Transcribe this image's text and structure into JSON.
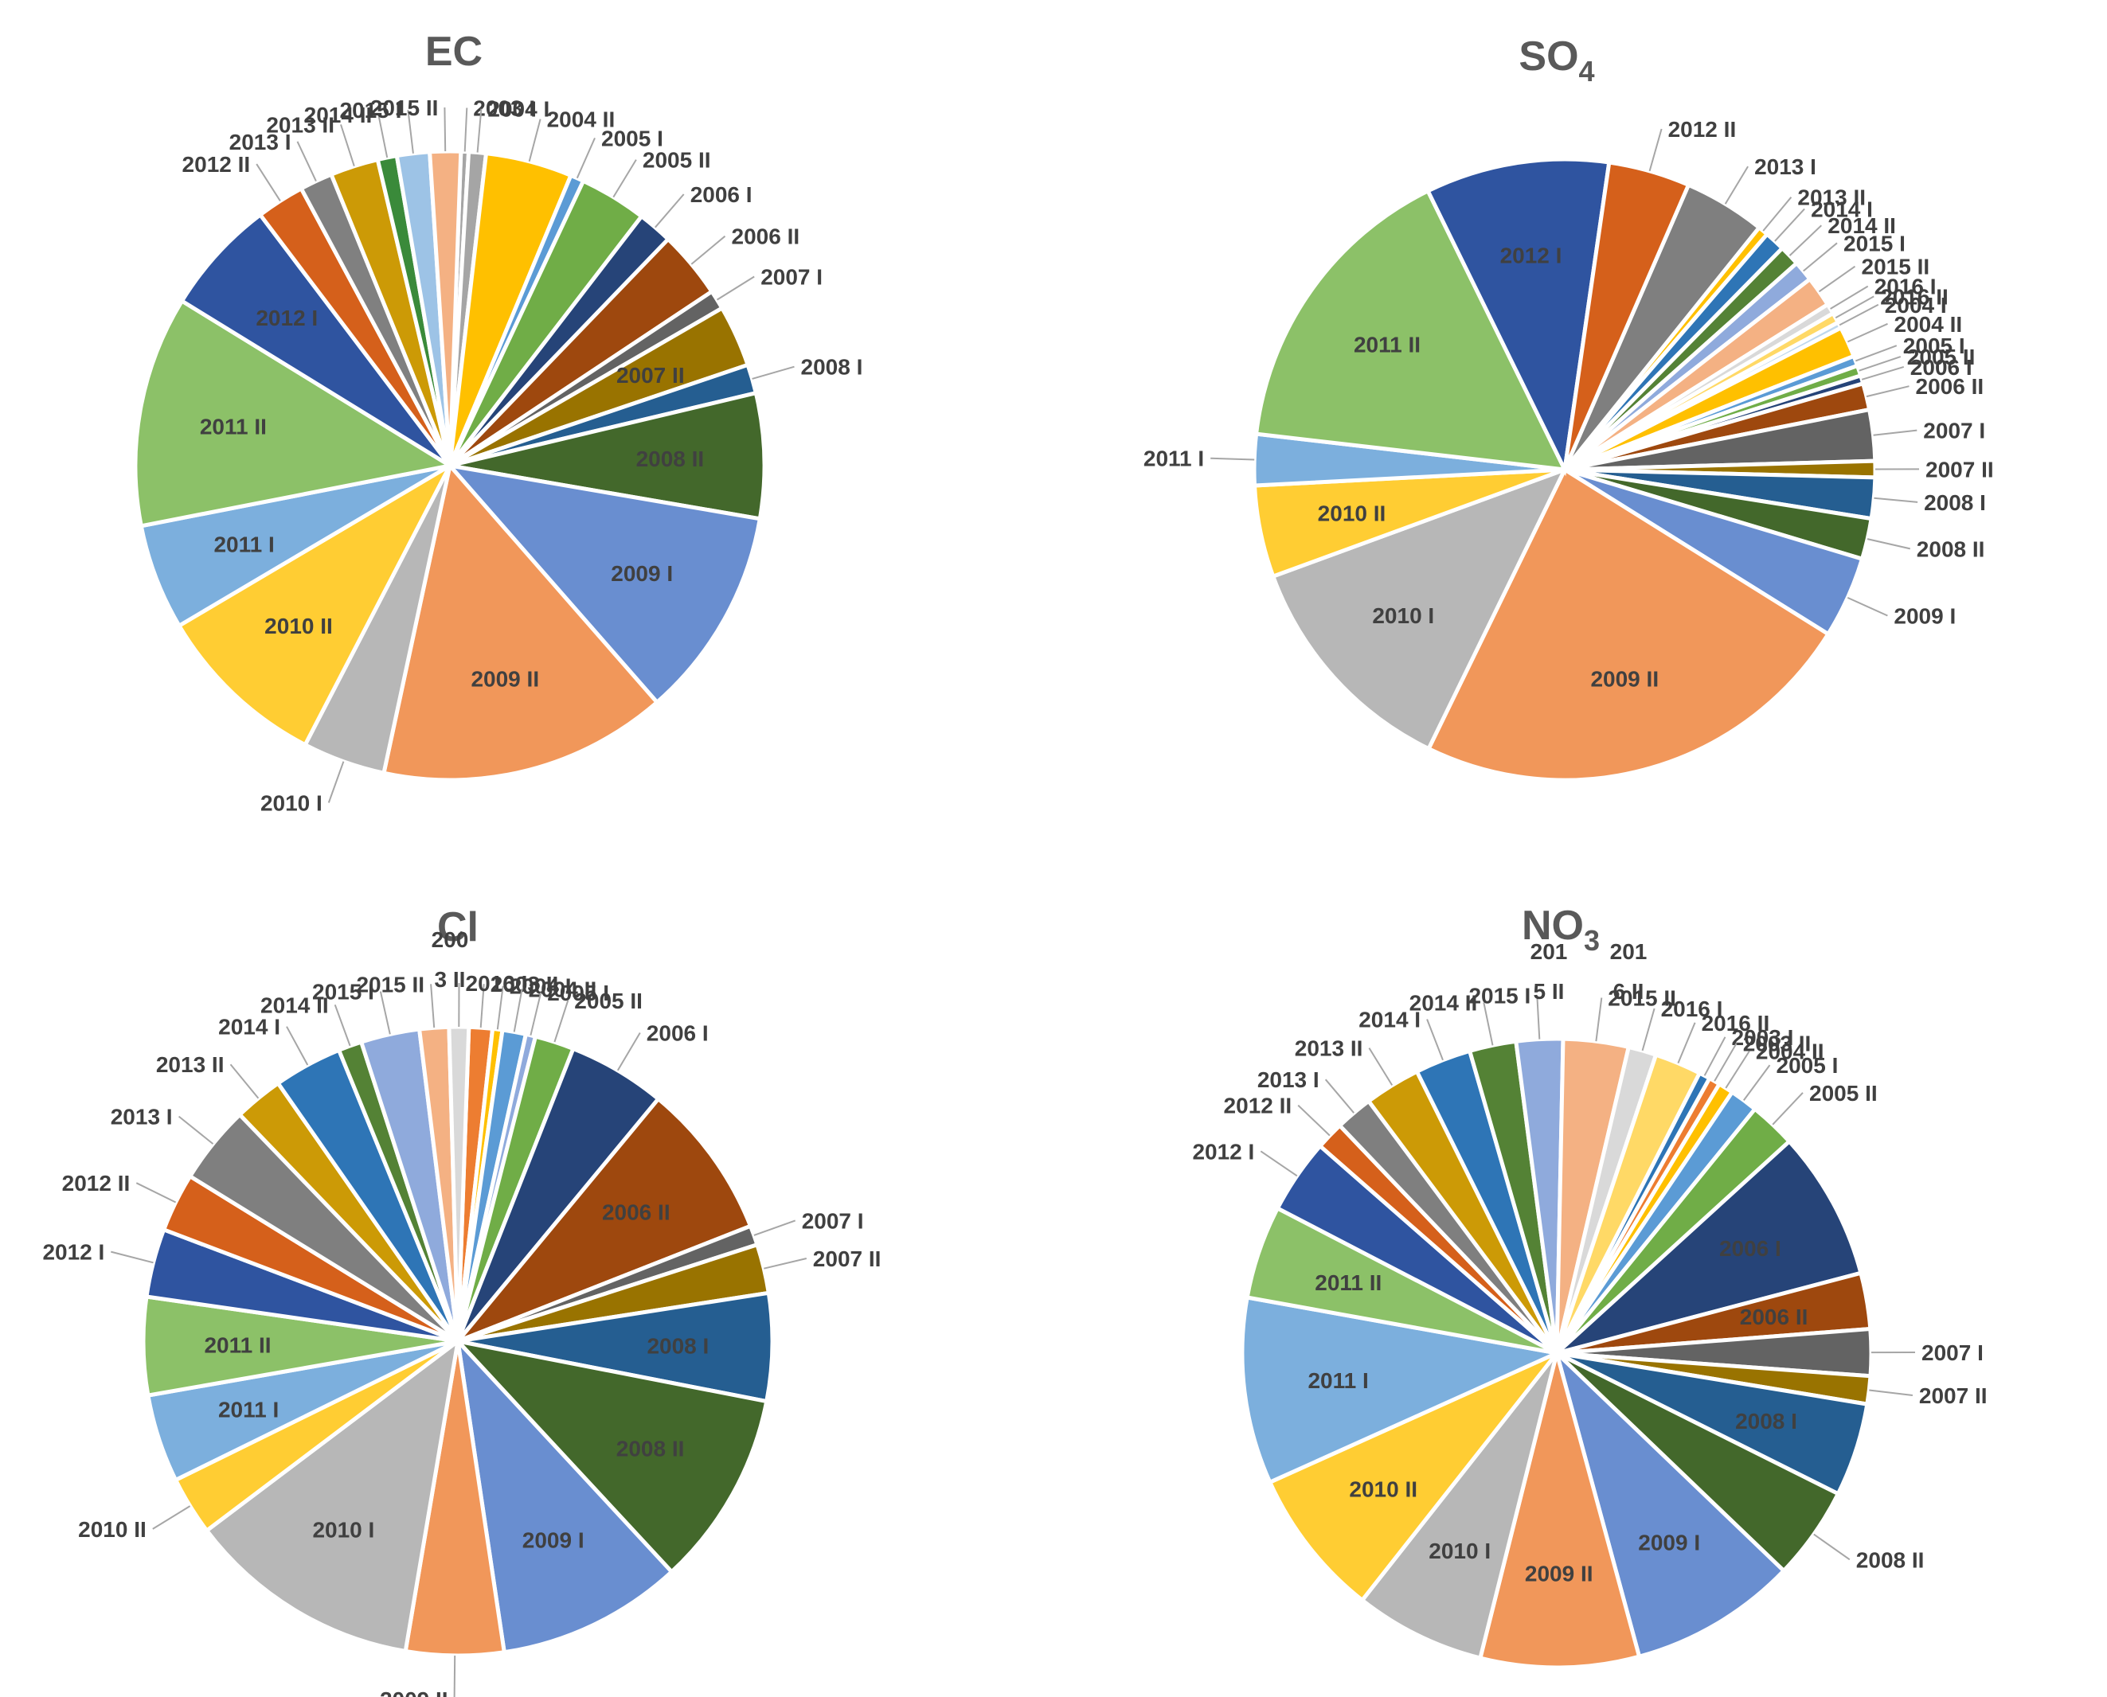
{
  "figure": {
    "description_label": "Four pie charts of seasonal contributions"
  },
  "chart_data": [
    {
      "type": "pie",
      "title": "EC",
      "title_sub": "",
      "slices": [
        {
          "label": "2003 I",
          "value": 0.4,
          "color": "#a5a5a5",
          "inside": false
        },
        {
          "label": "2004 I",
          "value": 0.9,
          "color": "#a5a5a5",
          "inside": false
        },
        {
          "label": "2004 II",
          "value": 4.5,
          "color": "#ffc000",
          "inside": false
        },
        {
          "label": "2005 I",
          "value": 0.7,
          "color": "#5b9bd5",
          "inside": false
        },
        {
          "label": "2005 II",
          "value": 3.5,
          "color": "#70ad47",
          "inside": false
        },
        {
          "label": "2006 I",
          "value": 1.8,
          "color": "#264478",
          "inside": false
        },
        {
          "label": "2006 II",
          "value": 3.5,
          "color": "#9e480e",
          "inside": false
        },
        {
          "label": "2007 I",
          "value": 1.0,
          "color": "#636363",
          "inside": false
        },
        {
          "label": "2007 II",
          "value": 3.2,
          "color": "#997300",
          "inside": true
        },
        {
          "label": "2008 I",
          "value": 1.5,
          "color": "#255e91",
          "inside": false
        },
        {
          "label": "2008 II",
          "value": 6.5,
          "color": "#43682b",
          "inside": true
        },
        {
          "label": "2009 I",
          "value": 11.0,
          "color": "#698ed0",
          "inside": true
        },
        {
          "label": "2009 II",
          "value": 15.0,
          "color": "#f1975a",
          "inside": true
        },
        {
          "label": "2010 I",
          "value": 4.3,
          "color": "#b7b7b7",
          "inside": false
        },
        {
          "label": "2010 II",
          "value": 9.0,
          "color": "#ffcd33",
          "inside": true
        },
        {
          "label": "2011 I",
          "value": 5.5,
          "color": "#7cafdd",
          "inside": true
        },
        {
          "label": "2011 II",
          "value": 12.0,
          "color": "#8cc168",
          "inside": true
        },
        {
          "label": "2012 I",
          "value": 6.0,
          "color": "#2f54a0",
          "inside": true
        },
        {
          "label": "2012 II",
          "value": 2.5,
          "color": "#d5601b",
          "inside": false
        },
        {
          "label": "2013 I",
          "value": 1.7,
          "color": "#808080",
          "inside": false
        },
        {
          "label": "2013 II",
          "value": 2.5,
          "color": "#cc9a06",
          "inside": false
        },
        {
          "label": "2014 II",
          "value": 1.0,
          "color": "#3a8a3a",
          "inside": false
        },
        {
          "label": "2015 I",
          "value": 1.7,
          "color": "#9dc3e6",
          "inside": false
        },
        {
          "label": "2015 II",
          "value": 1.6,
          "color": "#f4b183",
          "inside": false
        },
        {
          "label": "2003 I",
          "value": 0.0,
          "color": "#2e75b6",
          "inside": false,
          "hidden": true
        }
      ]
    },
    {
      "type": "pie",
      "title": "SO",
      "title_sub": "4",
      "slices": [
        {
          "label": "2013 I",
          "value": 4.0,
          "color": "#7f7f7f",
          "inside": false
        },
        {
          "label": "2013 II",
          "value": 0.5,
          "color": "#ffc000",
          "inside": false
        },
        {
          "label": "2014 I",
          "value": 1.0,
          "color": "#2e75b6",
          "inside": false
        },
        {
          "label": "2014 II",
          "value": 1.0,
          "color": "#548235",
          "inside": false
        },
        {
          "label": "2015 I",
          "value": 1.0,
          "color": "#8faadc",
          "inside": false
        },
        {
          "label": "2015 II",
          "value": 1.5,
          "color": "#f4b183",
          "inside": false
        },
        {
          "label": "2016 I",
          "value": 0.5,
          "color": "#d9d9d9",
          "inside": false
        },
        {
          "label": "2016 II",
          "value": 0.5,
          "color": "#ffd966",
          "inside": false
        },
        {
          "label": "2004 I",
          "value": 0.3,
          "color": "#bdd7ee",
          "inside": false
        },
        {
          "label": "2004 II",
          "value": 1.5,
          "color": "#ffc000",
          "inside": false
        },
        {
          "label": "2005 I",
          "value": 0.5,
          "color": "#5b9bd5",
          "inside": false
        },
        {
          "label": "2005 II",
          "value": 0.5,
          "color": "#70ad47",
          "inside": false
        },
        {
          "label": "2006 I",
          "value": 0.4,
          "color": "#264478",
          "inside": false
        },
        {
          "label": "2006 II",
          "value": 1.3,
          "color": "#9e480e",
          "inside": false
        },
        {
          "label": "2007 I",
          "value": 2.5,
          "color": "#636363",
          "inside": false
        },
        {
          "label": "2007 II",
          "value": 0.8,
          "color": "#997300",
          "inside": false
        },
        {
          "label": "2008 I",
          "value": 2.0,
          "color": "#255e91",
          "inside": false
        },
        {
          "label": "2008 II",
          "value": 2.0,
          "color": "#43682b",
          "inside": false
        },
        {
          "label": "2009 I",
          "value": 4.0,
          "color": "#698ed0",
          "inside": false
        },
        {
          "label": "2009 II",
          "value": 22.0,
          "color": "#f1975a",
          "inside": true
        },
        {
          "label": "2010 I",
          "value": 11.5,
          "color": "#b7b7b7",
          "inside": true
        },
        {
          "label": "2010 II",
          "value": 4.5,
          "color": "#ffcd33",
          "inside": true
        },
        {
          "label": "2011 I",
          "value": 2.5,
          "color": "#7cafdd",
          "inside": false
        },
        {
          "label": "2011 II",
          "value": 15.0,
          "color": "#8cc168",
          "inside": true
        },
        {
          "label": "2012 I",
          "value": 9.0,
          "color": "#2f54a0",
          "inside": true
        },
        {
          "label": "2012 II",
          "value": 4.0,
          "color": "#d5601b",
          "inside": false
        }
      ]
    },
    {
      "type": "pie",
      "title": "Cl",
      "title_sub": "",
      "slices": [
        {
          "label": "2003 II",
          "value": 1.2,
          "color": "#ed7d31",
          "inside": false
        },
        {
          "label": "2004 I",
          "value": 0.5,
          "color": "#ffc000",
          "inside": false
        },
        {
          "label": "2004 II",
          "value": 1.2,
          "color": "#5b9bd5",
          "inside": false
        },
        {
          "label": "2005 I",
          "value": 0.5,
          "color": "#8faadc",
          "inside": false
        },
        {
          "label": "2005 II",
          "value": 2.0,
          "color": "#70ad47",
          "inside": false
        },
        {
          "label": "2006 I",
          "value": 5.0,
          "color": "#264478",
          "inside": false
        },
        {
          "label": "2006 II",
          "value": 8.0,
          "color": "#9e480e",
          "inside": true
        },
        {
          "label": "2007 I",
          "value": 1.0,
          "color": "#636363",
          "inside": false
        },
        {
          "label": "2007 II",
          "value": 2.5,
          "color": "#997300",
          "inside": false
        },
        {
          "label": "2008 I",
          "value": 5.5,
          "color": "#255e91",
          "inside": true
        },
        {
          "label": "2008 II",
          "value": 10.0,
          "color": "#43682b",
          "inside": true
        },
        {
          "label": "2009 I",
          "value": 9.5,
          "color": "#698ed0",
          "inside": true
        },
        {
          "label": "2009 II",
          "value": 5.0,
          "color": "#f1975a",
          "inside": false
        },
        {
          "label": "2010 I",
          "value": 12.0,
          "color": "#b7b7b7",
          "inside": true
        },
        {
          "label": "2010 II",
          "value": 3.0,
          "color": "#ffcd33",
          "inside": false
        },
        {
          "label": "2011 I",
          "value": 4.5,
          "color": "#7cafdd",
          "inside": true
        },
        {
          "label": "2011 II",
          "value": 5.0,
          "color": "#8cc168",
          "inside": true
        },
        {
          "label": "2012 I",
          "value": 3.5,
          "color": "#2f54a0",
          "inside": false
        },
        {
          "label": "2012 II",
          "value": 3.0,
          "color": "#d5601b",
          "inside": false
        },
        {
          "label": "2013 I",
          "value": 4.0,
          "color": "#7f7f7f",
          "inside": false
        },
        {
          "label": "2013 II",
          "value": 2.5,
          "color": "#cc9a06",
          "inside": false
        },
        {
          "label": "2014 I",
          "value": 3.5,
          "color": "#2e75b6",
          "inside": false
        },
        {
          "label": "2014 II",
          "value": 1.2,
          "color": "#548235",
          "inside": false
        },
        {
          "label": "2015 I",
          "value": 3.0,
          "color": "#8faadc",
          "inside": false
        },
        {
          "label": "2015 II",
          "value": 1.5,
          "color": "#f4b183",
          "inside": false
        },
        {
          "label": "2016 I",
          "value": 1.0,
          "color": "#d9d9d9",
          "inside": false
        }
      ],
      "extra_labels": [
        "200",
        "3 II"
      ]
    },
    {
      "type": "pie",
      "title": "NO",
      "title_sub": "3",
      "slices": [
        {
          "label": "2003 I",
          "value": 0.6,
          "color": "#2e75b6",
          "inside": false
        },
        {
          "label": "2003 II",
          "value": 0.6,
          "color": "#ed7d31",
          "inside": false
        },
        {
          "label": "2004 II",
          "value": 0.8,
          "color": "#ffc000",
          "inside": false
        },
        {
          "label": "2005 I",
          "value": 1.5,
          "color": "#5b9bd5",
          "inside": false
        },
        {
          "label": "2005 II",
          "value": 2.5,
          "color": "#70ad47",
          "inside": false
        },
        {
          "label": "2006 I",
          "value": 8.0,
          "color": "#264478",
          "inside": true
        },
        {
          "label": "2006 II",
          "value": 3.0,
          "color": "#9e480e",
          "inside": true
        },
        {
          "label": "2007 I",
          "value": 2.5,
          "color": "#636363",
          "inside": false
        },
        {
          "label": "2007 II",
          "value": 1.5,
          "color": "#997300",
          "inside": false
        },
        {
          "label": "2008 I",
          "value": 5.0,
          "color": "#255e91",
          "inside": true
        },
        {
          "label": "2008 II",
          "value": 5.0,
          "color": "#43682b",
          "inside": false
        },
        {
          "label": "2009 I",
          "value": 9.0,
          "color": "#698ed0",
          "inside": true
        },
        {
          "label": "2009 II",
          "value": 8.5,
          "color": "#f1975a",
          "inside": true
        },
        {
          "label": "2010 I",
          "value": 7.0,
          "color": "#b7b7b7",
          "inside": true
        },
        {
          "label": "2010 II",
          "value": 8.0,
          "color": "#ffcd33",
          "inside": true
        },
        {
          "label": "2011 I",
          "value": 10.0,
          "color": "#7cafdd",
          "inside": true
        },
        {
          "label": "2011 II",
          "value": 5.0,
          "color": "#8cc168",
          "inside": true
        },
        {
          "label": "2012 I",
          "value": 4.0,
          "color": "#2f54a0",
          "inside": false
        },
        {
          "label": "2012 II",
          "value": 1.5,
          "color": "#d5601b",
          "inside": false
        },
        {
          "label": "2013 I",
          "value": 2.0,
          "color": "#7f7f7f",
          "inside": false
        },
        {
          "label": "2013 II",
          "value": 3.0,
          "color": "#cc9a06",
          "inside": false
        },
        {
          "label": "2014 I",
          "value": 3.0,
          "color": "#2e75b6",
          "inside": false
        },
        {
          "label": "2014 II",
          "value": 2.5,
          "color": "#548235",
          "inside": false
        },
        {
          "label": "2015 I",
          "value": 2.5,
          "color": "#8faadc",
          "inside": false
        },
        {
          "label": "2015 II",
          "value": 3.5,
          "color": "#f4b183",
          "inside": false
        },
        {
          "label": "2016 I",
          "value": 1.5,
          "color": "#d9d9d9",
          "inside": false
        },
        {
          "label": "2016 II",
          "value": 2.5,
          "color": "#ffd966",
          "inside": false
        }
      ],
      "extra_labels": [
        "201",
        "5 II",
        "201",
        "6 II"
      ]
    }
  ]
}
